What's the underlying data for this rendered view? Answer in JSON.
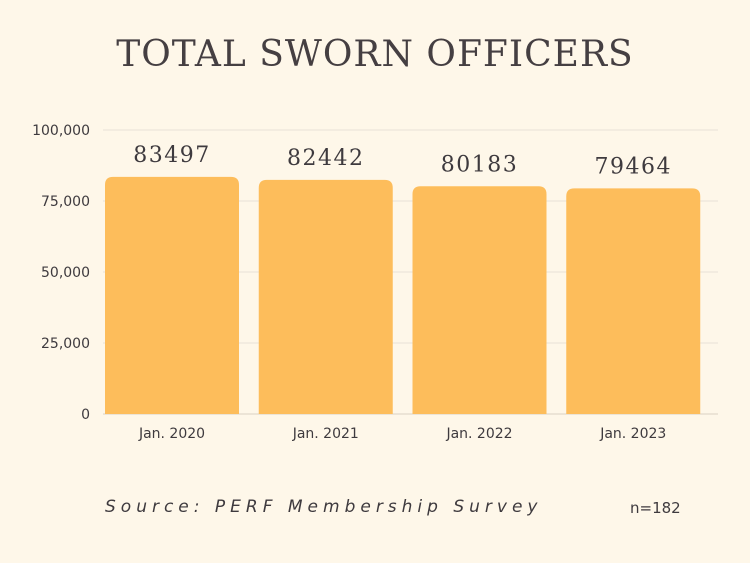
{
  "chart_data": {
    "type": "bar",
    "title": "TOTAL SWORN OFFICERS",
    "categories": [
      "Jan. 2020",
      "Jan. 2021",
      "Jan. 2022",
      "Jan. 2023"
    ],
    "values": [
      83497,
      82442,
      80183,
      79464
    ],
    "data_labels": [
      "83497",
      "82442",
      "80183",
      "79464"
    ],
    "xlabel": "",
    "ylabel": "",
    "ylim": [
      0,
      100000
    ],
    "yticks": [
      0,
      25000,
      50000,
      75000,
      100000
    ],
    "ytick_labels": [
      "0",
      "25,000",
      "50,000",
      "75,000",
      "100,000"
    ],
    "grid": true,
    "legend": "none",
    "colors": {
      "bar": "#fdbd5b",
      "background": "#fef7e9",
      "grid": "#e8e2d6",
      "text": "#3e3a3e"
    }
  },
  "footer": {
    "source": "Source: PERF Membership Survey",
    "n": "n=182"
  }
}
